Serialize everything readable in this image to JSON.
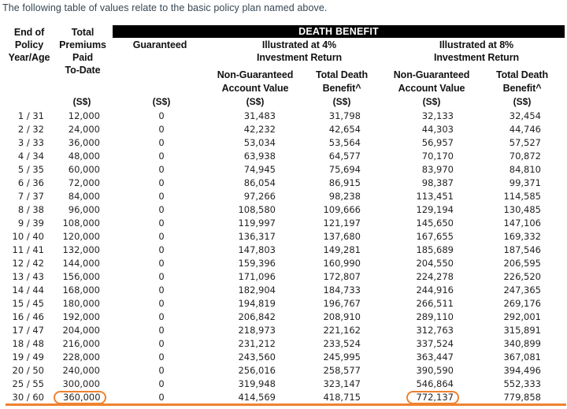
{
  "title": "The following table of values relate to the basic policy plan named above.",
  "table": {
    "group_header": "DEATH BENEFIT",
    "columns": {
      "year_age": "End of\nPolicy\nYear/Age",
      "premiums": "Total\nPremiums\nPaid\nTo-Date",
      "guaranteed": "Guaranteed",
      "illustrated_4": "Illustrated at 4%\nInvestment Return",
      "illustrated_8": "Illustrated at 8%\nInvestment Return",
      "account_value_4": "Non-Guaranteed\nAccount Value",
      "death_benefit_4": "Total Death\nBenefit^",
      "account_value_8": "Non-Guaranteed\nAccount Value",
      "death_benefit_8": "Total Death\nBenefit^"
    },
    "currency_unit": "(S$)",
    "rows": [
      [
        "1 / 31",
        "12,000",
        "0",
        "31,483",
        "31,798",
        "32,133",
        "32,454"
      ],
      [
        "2 / 32",
        "24,000",
        "0",
        "42,232",
        "42,654",
        "44,303",
        "44,746"
      ],
      [
        "3 / 33",
        "36,000",
        "0",
        "53,034",
        "53,564",
        "56,957",
        "57,527"
      ],
      [
        "4 / 34",
        "48,000",
        "0",
        "63,938",
        "64,577",
        "70,170",
        "70,872"
      ],
      [
        "5 / 35",
        "60,000",
        "0",
        "74,945",
        "75,694",
        "83,970",
        "84,810"
      ],
      [
        "6 / 36",
        "72,000",
        "0",
        "86,054",
        "86,915",
        "98,387",
        "99,371"
      ],
      [
        "7 / 37",
        "84,000",
        "0",
        "97,266",
        "98,238",
        "113,451",
        "114,585"
      ],
      [
        "8 / 38",
        "96,000",
        "0",
        "108,580",
        "109,666",
        "129,194",
        "130,485"
      ],
      [
        "9 / 39",
        "108,000",
        "0",
        "119,997",
        "121,197",
        "145,650",
        "147,106"
      ],
      [
        "10 / 40",
        "120,000",
        "0",
        "136,317",
        "137,680",
        "167,655",
        "169,332"
      ],
      [
        "11 / 41",
        "132,000",
        "0",
        "147,803",
        "149,281",
        "185,689",
        "187,546"
      ],
      [
        "12 / 42",
        "144,000",
        "0",
        "159,396",
        "160,990",
        "204,550",
        "206,595"
      ],
      [
        "13 / 43",
        "156,000",
        "0",
        "171,096",
        "172,807",
        "224,278",
        "226,520"
      ],
      [
        "14 / 44",
        "168,000",
        "0",
        "182,904",
        "184,733",
        "244,916",
        "247,365"
      ],
      [
        "15 / 45",
        "180,000",
        "0",
        "194,819",
        "196,767",
        "266,511",
        "269,176"
      ],
      [
        "16 / 46",
        "192,000",
        "0",
        "206,842",
        "208,910",
        "289,110",
        "292,001"
      ],
      [
        "17 / 47",
        "204,000",
        "0",
        "218,973",
        "221,162",
        "312,763",
        "315,891"
      ],
      [
        "18 / 48",
        "216,000",
        "0",
        "231,212",
        "233,524",
        "337,524",
        "340,899"
      ],
      [
        "19 / 49",
        "228,000",
        "0",
        "243,560",
        "245,995",
        "363,447",
        "367,081"
      ],
      [
        "20 / 50",
        "240,000",
        "0",
        "256,016",
        "258,577",
        "390,590",
        "394,496"
      ],
      [
        "25 / 55",
        "300,000",
        "0",
        "319,948",
        "323,147",
        "546,864",
        "552,333"
      ],
      [
        "30 / 60",
        "360,000",
        "0",
        "414,569",
        "418,715",
        "772,137",
        "779,858"
      ]
    ],
    "highlights": [
      {
        "row": 21,
        "cols": [
          1,
          5
        ]
      }
    ]
  },
  "colors": {
    "accent_orange": "#f0812e",
    "header_bar": "#000000",
    "title_text": "#364653"
  }
}
